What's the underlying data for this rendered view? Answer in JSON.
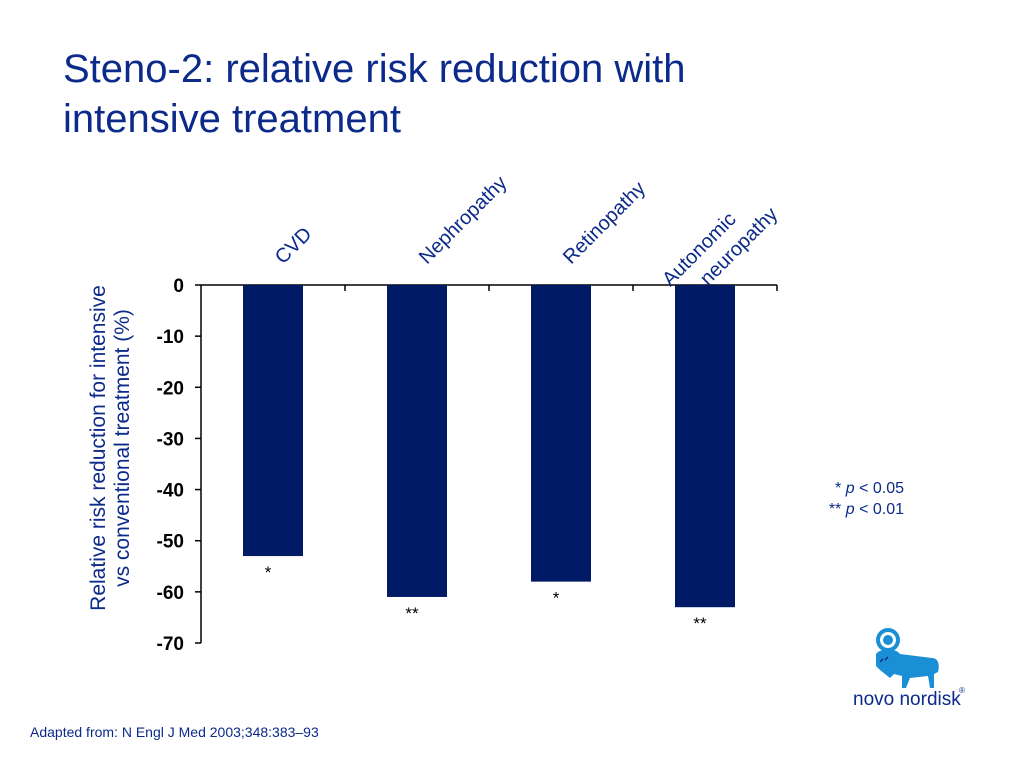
{
  "title": {
    "line1": "Steno-2: relative risk reduction with",
    "line2": "intensive treatment"
  },
  "yaxis": {
    "line1": "Relative risk reduction for intensive",
    "line2": "vs conventional treatment (%)"
  },
  "legend": {
    "line1_stars": "* ",
    "line1_p": "p",
    "line1_rest": " < 0.05",
    "line2_stars": "** ",
    "line2_p": "p",
    "line2_rest": " < 0.01"
  },
  "source": "Adapted from: N Engl J Med 2003;348:383–93",
  "logo": {
    "text": "novo nordisk",
    "reg": "®",
    "icon": "apis-bull-logo-icon"
  },
  "colors": {
    "bar": "#001a66",
    "text": "#0b2a8a",
    "axis": "#000000"
  },
  "chart_data": {
    "type": "bar",
    "title": "Steno-2: relative risk reduction with intensive treatment",
    "ylabel": "Relative risk reduction for intensive vs conventional treatment (%)",
    "xlabel": "",
    "categories": [
      [
        "CVD"
      ],
      [
        "Nephropathy"
      ],
      [
        "Retinopathy"
      ],
      [
        "Autonomic",
        "neuropathy"
      ]
    ],
    "values": [
      -53,
      -61,
      -58,
      -63
    ],
    "significance": [
      "*",
      "**",
      "*",
      "**"
    ],
    "ylim": [
      -70,
      0
    ],
    "yticks": [
      0,
      -10,
      -20,
      -30,
      -40,
      -50,
      -60,
      -70
    ],
    "grid": false,
    "legend_position": "right"
  }
}
